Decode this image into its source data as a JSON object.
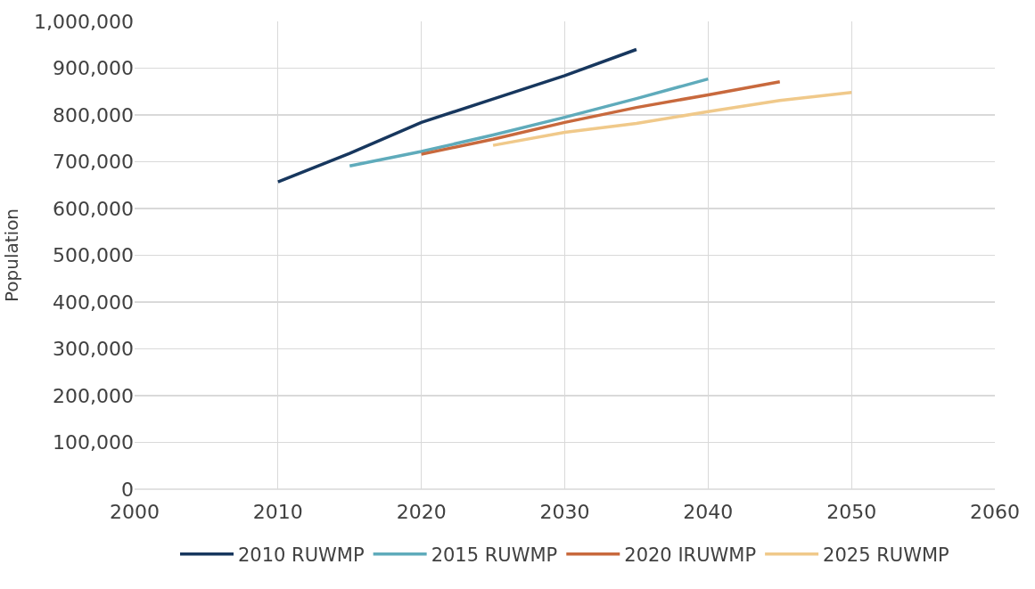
{
  "chart_data": {
    "type": "line",
    "ylabel": "Population",
    "series": [
      {
        "name": "2010 RUWMP",
        "color": "#17375e",
        "x": [
          2010,
          2015,
          2020,
          2025,
          2030,
          2035
        ],
        "values": [
          657000,
          718000,
          784000,
          834000,
          884000,
          940000
        ]
      },
      {
        "name": "2015 RUWMP",
        "color": "#5fabbb",
        "x": [
          2015,
          2020,
          2025,
          2030,
          2035,
          2040
        ],
        "values": [
          691000,
          722000,
          757000,
          795000,
          835000,
          877000
        ]
      },
      {
        "name": "2020 IRUWMP",
        "color": "#c8693d",
        "x": [
          2020,
          2025,
          2030,
          2035,
          2040,
          2045
        ],
        "values": [
          716000,
          748000,
          784000,
          816000,
          843000,
          871000
        ]
      },
      {
        "name": "2025 RUWMP",
        "color": "#f0c98a",
        "x": [
          2025,
          2030,
          2035,
          2040,
          2045,
          2050
        ],
        "values": [
          735000,
          763000,
          782000,
          807000,
          831000,
          848000
        ]
      }
    ],
    "xlim": [
      2000,
      2060
    ],
    "xticks": [
      2000,
      2010,
      2020,
      2030,
      2040,
      2050,
      2060
    ],
    "ylim": [
      0,
      1000000
    ],
    "yticks": [
      {
        "value": 0,
        "label": "0"
      },
      {
        "value": 100000,
        "label": "100,000"
      },
      {
        "value": 200000,
        "label": "200,000"
      },
      {
        "value": 300000,
        "label": "300,000"
      },
      {
        "value": 400000,
        "label": "400,000"
      },
      {
        "value": 500000,
        "label": "500,000"
      },
      {
        "value": 600000,
        "label": "600,000"
      },
      {
        "value": 700000,
        "label": "700,000"
      },
      {
        "value": 800000,
        "label": "800,000"
      },
      {
        "value": 900000,
        "label": "900,000"
      },
      {
        "value": 1000000,
        "label": "1,000,000"
      }
    ],
    "grid": true,
    "legend": "bottom",
    "marker": "none",
    "line_style": "solid"
  }
}
